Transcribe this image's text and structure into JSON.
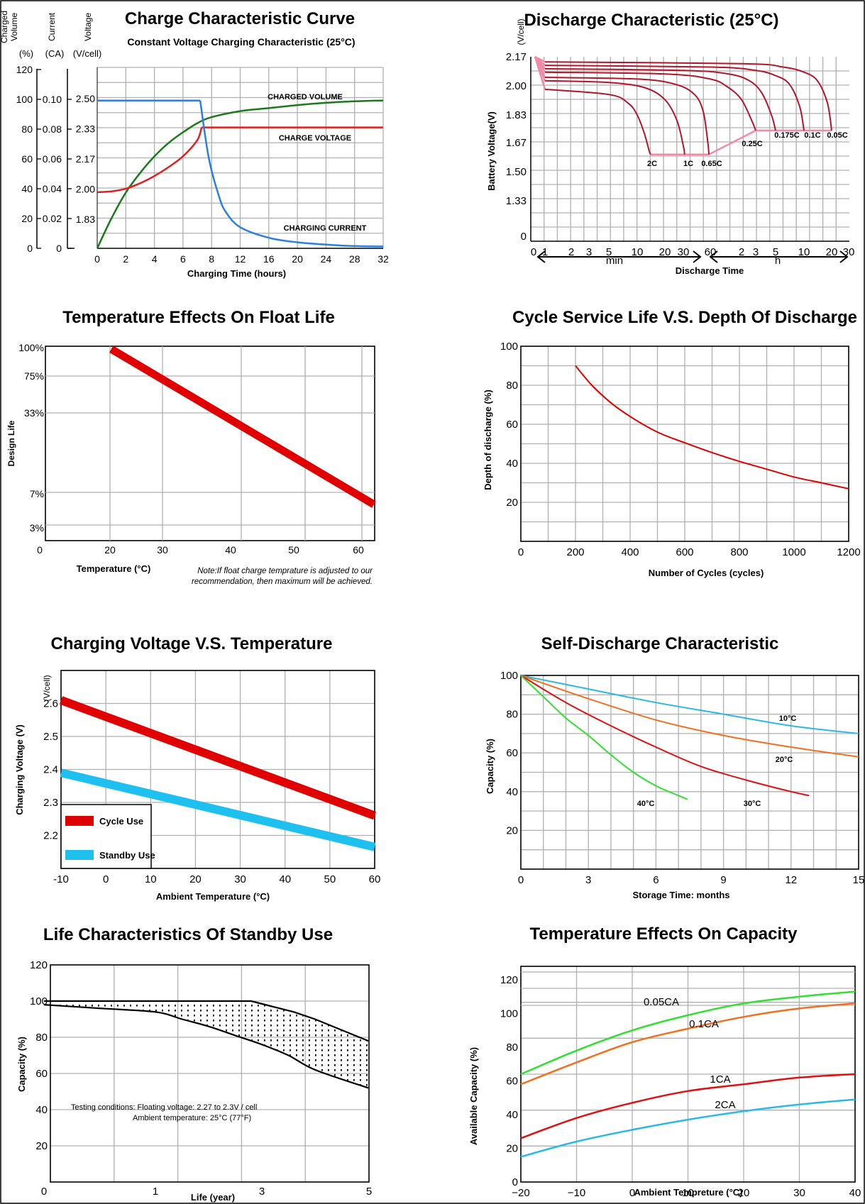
{
  "chart_data": [
    {
      "id": "charge",
      "type": "line",
      "title": "Charge Characteristic  Curve",
      "subtitle": "Constant Voltage Charging Characteristic (25°C)",
      "xlabel": "Charging Time (hours)",
      "x_ticks": [
        "0",
        "2",
        "4",
        "6",
        "8",
        "12",
        "16",
        "20",
        "24",
        "28",
        "32"
      ],
      "axes_heads": [
        {
          "name": "volume",
          "label": "Charged\nVolume\n(%)",
          "ticks": [
            "0",
            "20",
            "40",
            "60",
            "80",
            "100",
            "120"
          ]
        },
        {
          "name": "current",
          "label": "Current\n(CA)",
          "ticks": [
            "0",
            "0.02",
            "0.04",
            "0.06",
            "0.08",
            "0.10"
          ]
        },
        {
          "name": "voltage",
          "label": "Voltage\n(V/cell)",
          "ticks": [
            "1.83",
            "2.00",
            "2.17",
            "2.33",
            "2.50"
          ]
        }
      ],
      "series": [
        {
          "name": "CHARGED VOLUME",
          "color": "#1a7a1a",
          "x": [
            0,
            1,
            2,
            3,
            4,
            5,
            6,
            7,
            8,
            12,
            16,
            20,
            24,
            28,
            32
          ],
          "y": [
            0,
            20,
            37,
            50,
            61,
            70,
            77,
            83,
            87,
            91,
            93,
            95,
            96.5,
            97.5,
            98
          ]
        },
        {
          "name": "CHARGE VOLTAGE",
          "color": "#e02020",
          "axis": "voltage",
          "x": [
            0,
            1,
            2,
            3,
            4,
            5,
            6,
            7,
            7.3,
            32
          ],
          "y": [
            1.98,
            1.985,
            2.0,
            2.03,
            2.07,
            2.12,
            2.18,
            2.27,
            2.34,
            2.34
          ]
        },
        {
          "name": "CHARGING CURRENT",
          "color": "#2a7fe0",
          "axis": "current",
          "x": [
            0,
            7.2,
            7.8,
            9,
            10,
            12,
            16,
            20,
            24,
            28,
            32
          ],
          "y": [
            0.098,
            0.098,
            0.06,
            0.035,
            0.024,
            0.014,
            0.007,
            0.004,
            0.0025,
            0.0015,
            0.0012
          ]
        }
      ]
    },
    {
      "id": "discharge",
      "type": "line",
      "title": "Discharge Characteristic (25°C)",
      "ylabel": "Battery Voltage(V)",
      "yunit": "(V/cell)",
      "xlabel": "Discharge Time",
      "y_ticks": [
        "0",
        "1.33",
        "1.50",
        "1.67",
        "1.83",
        "2.00",
        "2.17"
      ],
      "x_ticks_min": [
        "0",
        "1",
        "2",
        "3",
        "5",
        "10",
        "20",
        "30",
        "60"
      ],
      "x_ticks_h": [
        "2",
        "3",
        "5",
        "10",
        "20",
        "30"
      ],
      "unit_min": "min",
      "unit_h": "h",
      "series": [
        {
          "name": "2C",
          "x_min": [
            0,
            1,
            5,
            8,
            10,
            12,
            13.5,
            14
          ],
          "y": [
            2.17,
            1.98,
            1.95,
            1.9,
            1.83,
            1.72,
            1.62,
            1.6
          ]
        },
        {
          "name": "1C",
          "x_min": [
            0,
            1,
            5,
            12,
            20,
            26,
            30,
            31
          ],
          "y": [
            2.17,
            2.03,
            2.02,
            1.99,
            1.92,
            1.8,
            1.65,
            1.6
          ]
        },
        {
          "name": "0.65C",
          "x_min": [
            0,
            1,
            10,
            25,
            40,
            50,
            56,
            58
          ],
          "y": [
            2.17,
            2.05,
            2.04,
            2.01,
            1.95,
            1.85,
            1.68,
            1.6
          ]
        },
        {
          "name": "0.25C",
          "x_min": [
            0,
            1,
            20,
            60,
            90,
            120,
            160,
            180
          ],
          "y": [
            2.17,
            2.08,
            2.07,
            2.04,
            1.99,
            1.92,
            1.8,
            1.74
          ]
        },
        {
          "name": "0.175C",
          "x_min": [
            0,
            1,
            30,
            90,
            150,
            210,
            270,
            300
          ],
          "y": [
            2.17,
            2.1,
            2.09,
            2.07,
            2.03,
            1.96,
            1.83,
            1.74
          ]
        },
        {
          "name": "0.1C",
          "x_min": [
            0,
            1,
            60,
            180,
            300,
            420,
            540,
            600
          ],
          "y": [
            2.17,
            2.12,
            2.11,
            2.09,
            2.06,
            2.01,
            1.88,
            1.74
          ]
        },
        {
          "name": "0.05C",
          "x_min": [
            0,
            1,
            120,
            360,
            600,
            840,
            1080,
            1200
          ],
          "y": [
            2.17,
            2.14,
            2.13,
            2.11,
            2.08,
            2.03,
            1.9,
            1.74
          ]
        }
      ]
    },
    {
      "id": "floatlife",
      "type": "line",
      "title": "Temperature Effects On Float Life",
      "ylabel": "Design Life",
      "xlabel": "Temperature (°C)",
      "y_ticks": [
        "3%",
        "7%",
        "33%",
        "75%",
        "100%"
      ],
      "x_ticks": [
        "0",
        "20",
        "30",
        "40",
        "50",
        "60"
      ],
      "note": "Note:If float charge temprature is adjusted to our recommendation, then maximum will be achieved.",
      "series": [
        {
          "name": "",
          "color": "#e00000",
          "x": [
            20.2,
            62.5
          ],
          "y": [
            97.5,
            14
          ]
        }
      ]
    },
    {
      "id": "cyclelife",
      "type": "line",
      "title": "Cycle Service Life  V.S. Depth Of Discharge",
      "ylabel": "Depth of discharge (%)",
      "xlabel": "Number of Cycles (cycles)",
      "xlim": [
        0,
        1200
      ],
      "ylim": [
        0,
        100
      ],
      "y_ticks": [
        "20",
        "40",
        "60",
        "80",
        "100"
      ],
      "x_ticks": [
        "0",
        "200",
        "400",
        "600",
        "800",
        "1000",
        "1200"
      ],
      "series": [
        {
          "name": "",
          "color": "#e00000",
          "x": [
            200,
            260,
            330,
            400,
            500,
            600,
            700,
            800,
            900,
            1000,
            1100,
            1200
          ],
          "y": [
            90,
            80,
            71,
            64,
            56,
            50.5,
            45.5,
            41,
            37,
            33,
            30,
            27
          ]
        }
      ]
    },
    {
      "id": "chargevolt",
      "type": "line",
      "title": "Charging Voltage V.S. Temperature",
      "ylabel": "Charging Voltage (V)",
      "yunit": "(V/cell)",
      "xlabel": "Ambient Temperature (°C)",
      "xlim": [
        -10,
        60
      ],
      "ylim": [
        2.1,
        2.7
      ],
      "y_ticks": [
        "2.2",
        "2.3",
        "2.4",
        "2.5",
        "2.6"
      ],
      "x_ticks": [
        "-10",
        "0",
        "10",
        "20",
        "30",
        "40",
        "50",
        "60"
      ],
      "series": [
        {
          "name": "Cycle Use",
          "color": "#e00000",
          "x": [
            -10,
            60
          ],
          "y": [
            2.61,
            2.26
          ]
        },
        {
          "name": "Standby Use",
          "color": "#1ec0f0",
          "x": [
            -10,
            60
          ],
          "y": [
            2.39,
            2.165
          ]
        }
      ]
    },
    {
      "id": "selfdischarge",
      "type": "line",
      "title": "Self-Discharge Characteristic",
      "ylabel": "Capacity (%)",
      "xlabel": "Storage Time: months",
      "xlim": [
        0,
        15
      ],
      "ylim": [
        0,
        100
      ],
      "y_ticks": [
        "20",
        "40",
        "60",
        "80",
        "100"
      ],
      "x_ticks": [
        "0",
        "3",
        "6",
        "9",
        "12",
        "15"
      ],
      "series": [
        {
          "name": "10°C",
          "color": "#2ab8e8",
          "x": [
            0,
            3,
            6,
            9,
            12,
            15
          ],
          "y": [
            100,
            93,
            86,
            80,
            74,
            70
          ]
        },
        {
          "name": "20°C",
          "color": "#f07020",
          "x": [
            0,
            3,
            6,
            9,
            12,
            15
          ],
          "y": [
            100,
            88,
            77,
            69,
            63,
            58
          ]
        },
        {
          "name": "30°C",
          "color": "#e01010",
          "x": [
            0,
            2,
            4,
            6,
            8,
            10,
            12,
            12.8
          ],
          "y": [
            100,
            86,
            74,
            63,
            53,
            46,
            40,
            38
          ]
        },
        {
          "name": "40°C",
          "color": "#30e030",
          "x": [
            0,
            1,
            2,
            3,
            4,
            5,
            6,
            7,
            7.4
          ],
          "y": [
            100,
            89,
            78,
            69,
            59,
            50,
            43,
            38,
            36
          ]
        }
      ]
    },
    {
      "id": "standbylife",
      "type": "area",
      "title": "Life Characteristics Of Standby Use",
      "ylabel": "Capacity (%)",
      "xlabel": "Life (year)",
      "ylim": [
        0,
        120
      ],
      "y_ticks": [
        "20",
        "40",
        "60",
        "80",
        "100",
        "120"
      ],
      "x_ticks": [
        "0",
        "1",
        "3",
        "5"
      ],
      "note_line1": "Testing conditions: Floating voltage: 2.27 to 2.3V / cell",
      "note_line2": "Ambient temperature:      25°C (77°F)",
      "series": [
        {
          "name": "",
          "x": [
            0,
            1,
            2,
            2.8,
            3.2,
            3.6,
            4,
            5
          ],
          "y": [
            100,
            100,
            100,
            100,
            97,
            94,
            90,
            78
          ]
        },
        {
          "name": "",
          "x": [
            0,
            0.5,
            1,
            1.5,
            2,
            2.5,
            3,
            3.5,
            4,
            5
          ],
          "y": [
            98,
            96,
            94,
            90,
            86,
            81,
            76,
            70,
            62,
            52
          ]
        }
      ]
    },
    {
      "id": "tempcapacity",
      "type": "line",
      "title": "Temperature Effects On Capacity",
      "ylabel": "Available Capacity (%)",
      "xlabel": "Ambient Tempreture   (°C)",
      "xlim": [
        -20,
        40
      ],
      "ylim": [
        0,
        120
      ],
      "y_ticks": [
        "0",
        "20",
        "40",
        "60",
        "80",
        "100",
        "120"
      ],
      "x_ticks": [
        "−20",
        "−10",
        "0",
        "10",
        "20",
        "30",
        "40"
      ],
      "series": [
        {
          "name": "0.05CA",
          "color": "#30e030",
          "x": [
            -20,
            -10,
            0,
            10,
            20,
            30,
            40
          ],
          "y": [
            64,
            78,
            90,
            99,
            106,
            110,
            113
          ]
        },
        {
          "name": "0.1CA",
          "color": "#f07020",
          "x": [
            -20,
            -10,
            0,
            10,
            20,
            30,
            40
          ],
          "y": [
            58,
            71,
            83,
            91,
            98,
            103,
            106
          ]
        },
        {
          "name": "1CA",
          "color": "#e01010",
          "x": [
            -20,
            -10,
            0,
            10,
            20,
            30,
            40
          ],
          "y": [
            26,
            38,
            47,
            54,
            58,
            62,
            64
          ]
        },
        {
          "name": "2CA",
          "color": "#2ab8e8",
          "x": [
            -20,
            -10,
            0,
            10,
            20,
            30,
            40
          ],
          "y": [
            15,
            24,
            31,
            37,
            42,
            46,
            49
          ]
        }
      ]
    }
  ]
}
